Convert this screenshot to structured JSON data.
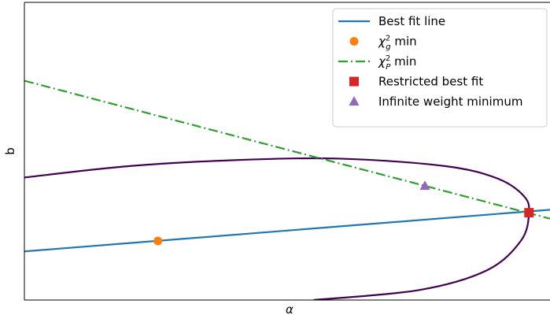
{
  "chart_data": {
    "type": "line",
    "title": "",
    "xlabel": "α",
    "ylabel": "b",
    "xlim": [
      0,
      10
    ],
    "ylim": [
      0,
      6
    ],
    "grid": false,
    "legend_position": "top-right",
    "series": [
      {
        "name": "Best fit line",
        "kind": "line",
        "color": "#1f77b4",
        "points": [
          [
            0.0,
            0.98
          ],
          [
            10.0,
            1.82
          ]
        ]
      },
      {
        "name": "χ²_g min",
        "kind": "point",
        "marker": "circle",
        "color": "#ff7f0e",
        "points": [
          [
            2.54,
            1.19
          ]
        ]
      },
      {
        "name": "χ²_P min",
        "kind": "line",
        "dash": "dashdot",
        "color": "#2ca02c",
        "points": [
          [
            0.0,
            4.42
          ],
          [
            10.0,
            1.64
          ]
        ]
      },
      {
        "name": "Restricted best fit",
        "kind": "point",
        "marker": "square",
        "color": "#d62728",
        "points": [
          [
            9.6,
            1.76
          ]
        ]
      },
      {
        "name": "Infinite weight minimum",
        "kind": "point",
        "marker": "triangle",
        "color": "#9467bd",
        "points": [
          [
            7.62,
            2.3
          ]
        ]
      }
    ],
    "contour": {
      "color": "#440154",
      "points": [
        [
          0.0,
          2.47
        ],
        [
          2.0,
          2.7
        ],
        [
          4.0,
          2.82
        ],
        [
          6.0,
          2.85
        ],
        [
          8.0,
          2.7
        ],
        [
          9.0,
          2.45
        ],
        [
          9.5,
          2.1
        ],
        [
          9.6,
          1.76
        ],
        [
          9.45,
          1.2
        ],
        [
          8.8,
          0.6
        ],
        [
          7.5,
          0.2
        ],
        [
          5.5,
          0.0
        ]
      ]
    },
    "legend": {
      "entries": [
        {
          "label": "Best fit line",
          "sub": "",
          "suffix": "",
          "symbol": "line",
          "color": "#1f77b4"
        },
        {
          "label": "χ",
          "sub": "g",
          "suffix": " min",
          "symbol": "circle",
          "color": "#ff7f0e"
        },
        {
          "label": "χ",
          "sub": "P",
          "suffix": " min",
          "symbol": "dashdot",
          "color": "#2ca02c"
        },
        {
          "label": "Restricted best fit",
          "sub": "",
          "suffix": "",
          "symbol": "square",
          "color": "#d62728"
        },
        {
          "label": "Infinite weight minimum",
          "sub": "",
          "suffix": "",
          "symbol": "triangle",
          "color": "#9467bd"
        }
      ]
    }
  }
}
